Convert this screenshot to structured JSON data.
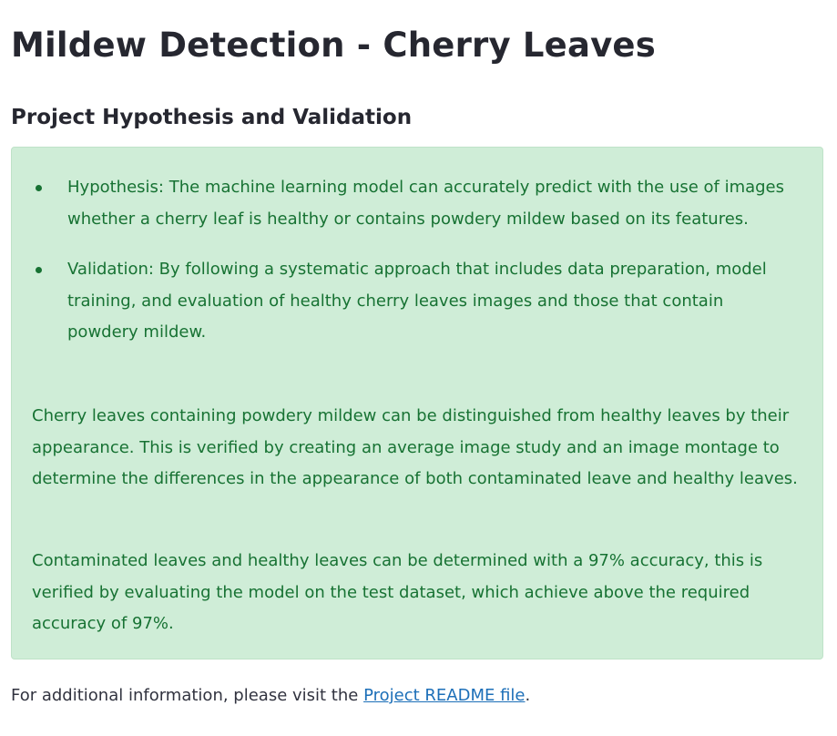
{
  "header": {
    "title": "Mildew Detection - Cherry Leaves",
    "subtitle": "Project Hypothesis and Validation"
  },
  "callout": {
    "bullets": [
      "Hypothesis: The machine learning model can accurately predict with the use of images whether a cherry leaf is healthy or contains powdery mildew based on its features.",
      "Validation: By following a systematic approach that includes data preparation, model training, and evaluation of healthy cherry leaves images and those that contain powdery mildew."
    ],
    "paragraphs": [
      "Cherry leaves containing powdery mildew can be distinguished from healthy leaves by their appearance. This is verified by creating an average image study and an image montage to determine the differences in the appearance of both contaminated leave and healthy leaves.",
      "Contaminated leaves and healthy leaves can be determined with a 97% accuracy, this is verified by evaluating the model on the test dataset, which achieve above the required accuracy of 97%."
    ],
    "background_color": "#cfedd7",
    "text_color": "#177233"
  },
  "footer": {
    "text_before": "For additional information, please visit the ",
    "link_label": "Project README file",
    "text_after": "."
  },
  "colors": {
    "link": "#1c6fb8",
    "heading": "#262730"
  }
}
